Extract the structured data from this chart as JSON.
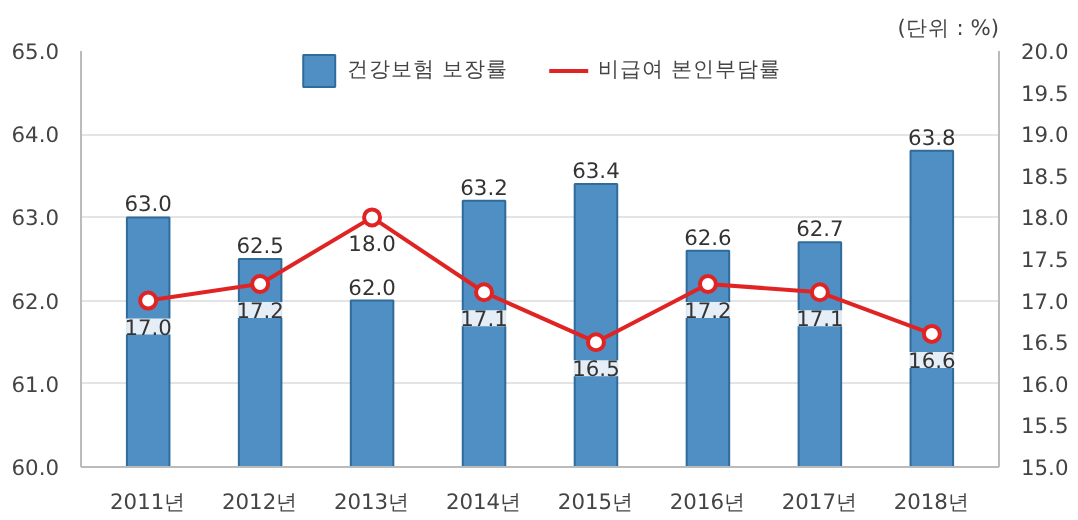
{
  "chart_data": {
    "type": "bar",
    "categories": [
      "2011년",
      "2012년",
      "2013년",
      "2014년",
      "2015년",
      "2016년",
      "2017년",
      "2018년"
    ],
    "series": [
      {
        "name": "건강보험 보장률",
        "color": "#4f8fc4",
        "values": [
          63.0,
          62.5,
          62.0,
          63.2,
          63.4,
          62.6,
          62.7,
          63.8
        ],
        "value_labels": [
          "63.0",
          "62.5",
          "62.0",
          "63.2",
          "63.4",
          "62.6",
          "62.7",
          "63.8"
        ]
      },
      {
        "name": "비급여 본인부담률",
        "type": "line",
        "axis": "y2",
        "color": "#e02424",
        "values": [
          17.0,
          17.2,
          18.0,
          17.1,
          16.5,
          17.2,
          17.1,
          16.6
        ],
        "value_labels": [
          "17.0",
          "17.2",
          "18.0",
          "17.1",
          "16.5",
          "17.2",
          "17.1",
          "16.6"
        ]
      }
    ],
    "ylim": [
      60,
      65
    ],
    "yticks": [
      {
        "value": 60,
        "label": "60.0"
      },
      {
        "value": 61,
        "label": "61.0"
      },
      {
        "value": 62,
        "label": "62.0"
      },
      {
        "value": 63,
        "label": "63.0"
      },
      {
        "value": 64,
        "label": "64.0"
      },
      {
        "value": 65,
        "label": "65.0"
      }
    ],
    "y2lim": [
      15,
      20
    ],
    "y2ticks": [
      {
        "value": 15,
        "label": "15.0"
      },
      {
        "value": 15.5,
        "label": "15.5"
      },
      {
        "value": 16,
        "label": "16.0"
      },
      {
        "value": 16.5,
        "label": "16.5"
      },
      {
        "value": 17,
        "label": "17.0"
      },
      {
        "value": 17.5,
        "label": "17.5"
      },
      {
        "value": 18,
        "label": "18.0"
      },
      {
        "value": 18.5,
        "label": "18.5"
      },
      {
        "value": 19,
        "label": "19.0"
      },
      {
        "value": 19.5,
        "label": "19.5"
      },
      {
        "value": 20,
        "label": "20.0"
      }
    ],
    "annotations": [
      "(단위 : %)"
    ],
    "grid": "y",
    "legend": "top",
    "marker": "circle",
    "line_style": "solid"
  }
}
